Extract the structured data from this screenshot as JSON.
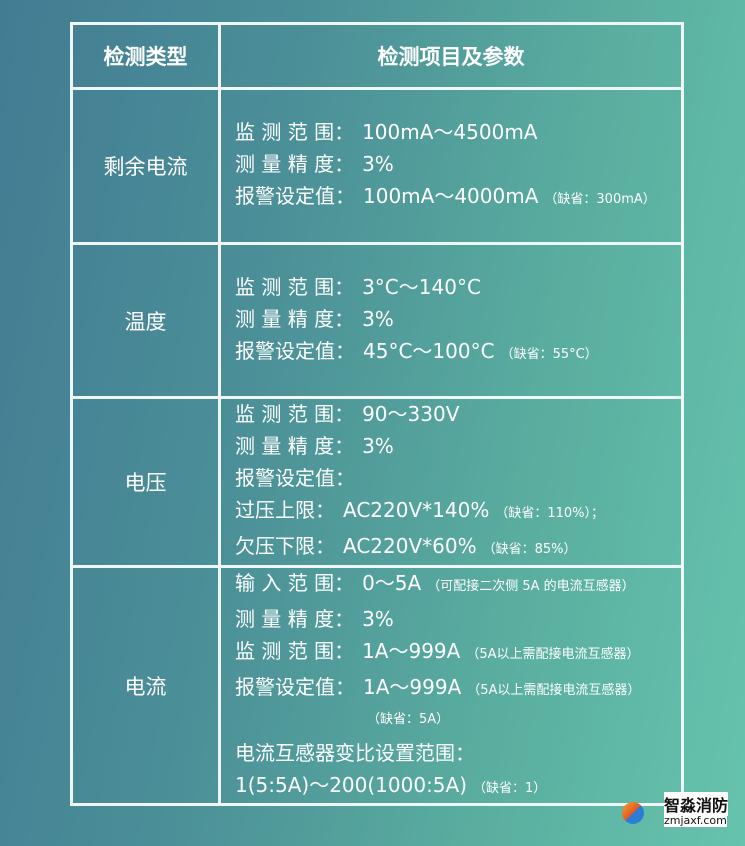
{
  "header": {
    "col1": "检测类型",
    "col2": "检测项目及参数"
  },
  "rows": [
    {
      "type": "剩余电流",
      "lines": [
        {
          "label": "监 测 范 围：",
          "value": "100mA～4500mA",
          "note": ""
        },
        {
          "label": "测 量 精 度：",
          "value": "3%",
          "note": ""
        },
        {
          "label": "报警设定值：",
          "value": "100mA～4000mA",
          "note": "（缺省：300mA）"
        }
      ]
    },
    {
      "type": "温度",
      "lines": [
        {
          "label": "监 测 范 围：",
          "value": "3°C～140°C",
          "note": ""
        },
        {
          "label": "测 量 精 度：",
          "value": "3%",
          "note": ""
        },
        {
          "label": "报警设定值：",
          "value": "45°C～100°C",
          "note": "（缺省：55°C）"
        }
      ]
    },
    {
      "type": "电压",
      "lines": [
        {
          "label": "监 测 范 围：",
          "value": "90～330V",
          "note": ""
        },
        {
          "label": "测 量 精 度：",
          "value": "3%",
          "note": ""
        },
        {
          "label": "报警设定值：",
          "value": "",
          "note": ""
        },
        {
          "label": "过压上限：",
          "value": "AC220V*140%",
          "note": "（缺省：110%）；"
        },
        {
          "label": "欠压下限：",
          "value": "AC220V*60%",
          "note": "（缺省：85%）"
        }
      ]
    },
    {
      "type": "电流",
      "lines": [
        {
          "label": "输 入 范 围：",
          "value": "0～5A",
          "note": "（可配接二次侧 5A 的电流互感器）"
        },
        {
          "label": "测 量 精 度：",
          "value": "3%",
          "note": ""
        },
        {
          "label": "监 测 范 围：",
          "value": "1A～999A",
          "note": "（5A以上需配接电流互感器）"
        },
        {
          "label": "报警设定值：",
          "value": "1A～999A",
          "note": "（5A以上需配接电流互感器）"
        }
      ],
      "alarm_default": "（缺省：5A）",
      "ct_label": "电流互感器变比设置范围：",
      "ct_value": "1(5:5A)～200(1000:5A)",
      "ct_note": "（缺省：1）"
    }
  ],
  "watermark": {
    "name": "智淼消防",
    "url": "zmjaxf.com"
  }
}
